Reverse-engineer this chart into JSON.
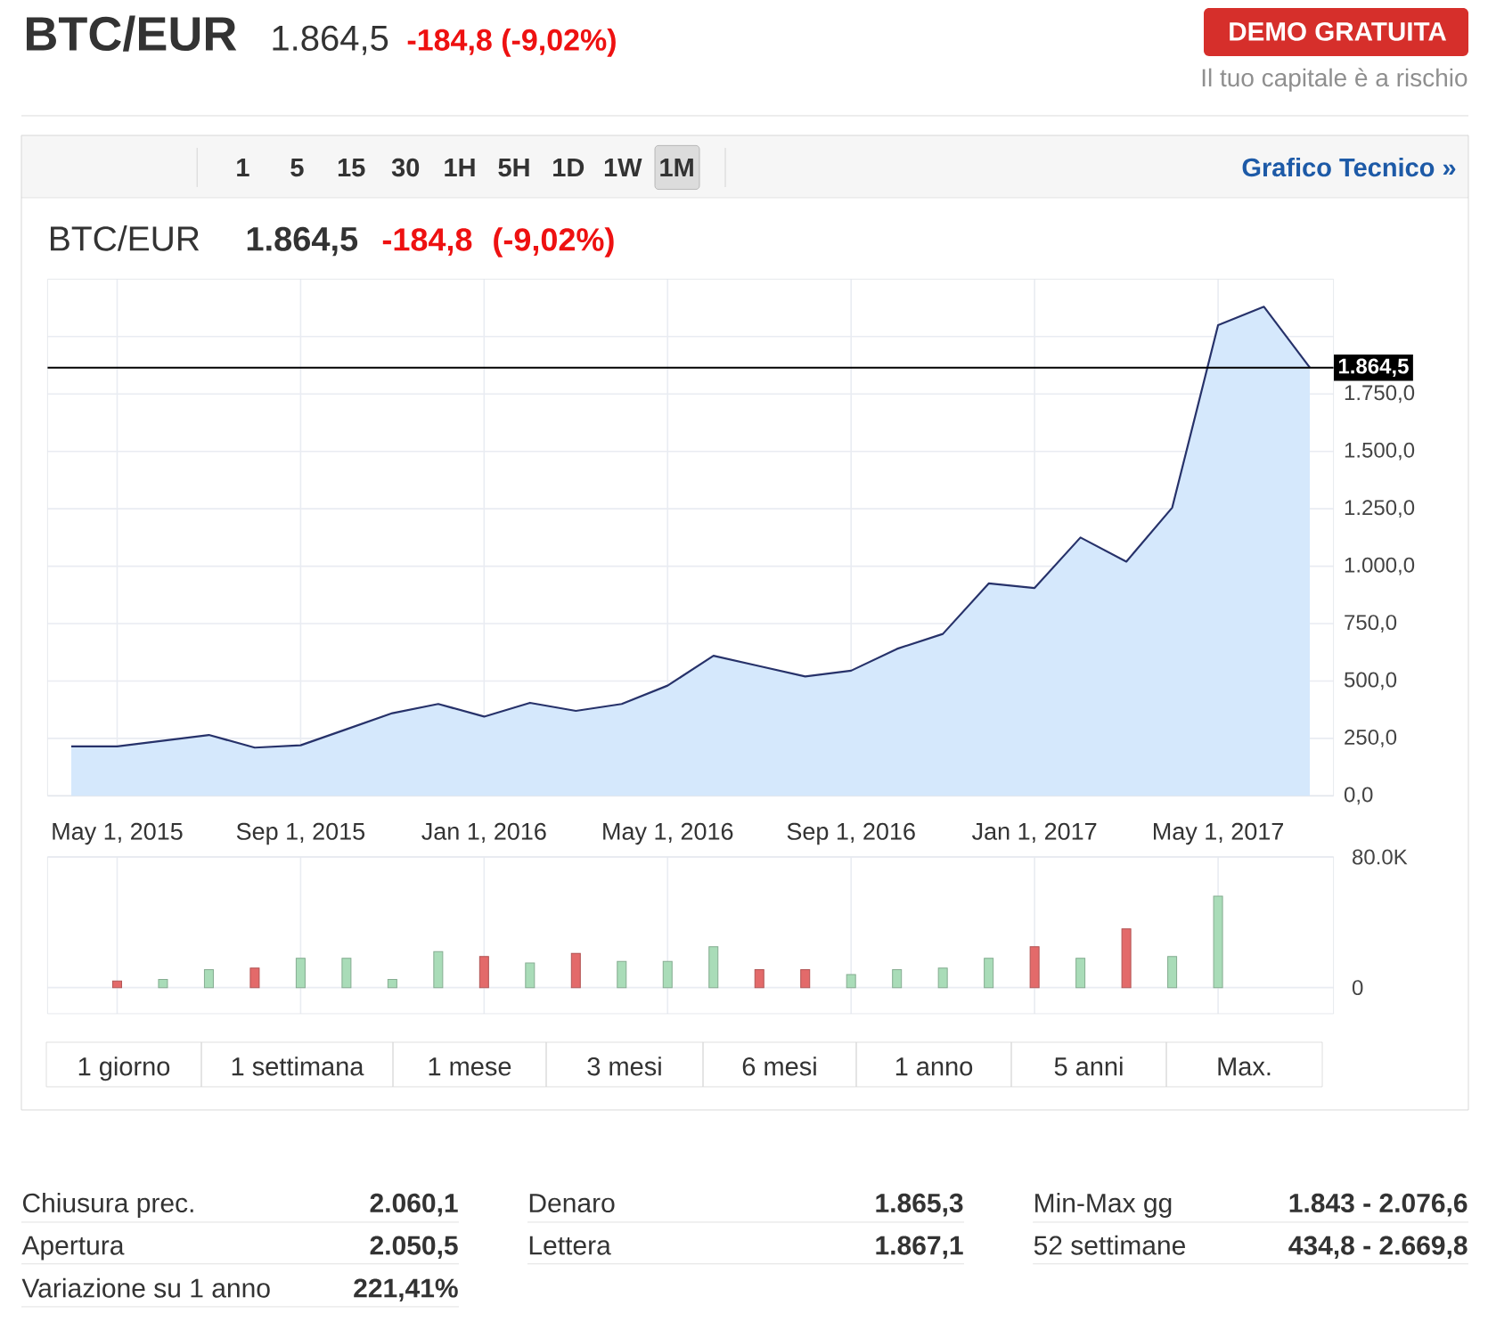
{
  "chart_data": [
    {
      "type": "other",
      "title": "BTC/EUR",
      "annotations": [
        "1.864,5",
        "-184,8 (-9,02%)",
        "DEMO GRATUITA",
        "Il tuo capitale è a rischio",
        "1",
        "5",
        "15",
        "30",
        "1H",
        "5H",
        "1D",
        "1W",
        "1M",
        "Grafico Tecnico »"
      ]
    },
    {
      "type": "area",
      "title": "BTC/EUR",
      "annotations": [
        "1.864,5",
        "-184,8",
        "(-9,02%)"
      ],
      "x": [
        "2015-04",
        "2015-05",
        "2015-06",
        "2015-07",
        "2015-08",
        "2015-09",
        "2015-10",
        "2015-11",
        "2015-12",
        "2016-01",
        "2016-02",
        "2016-03",
        "2016-04",
        "2016-05",
        "2016-06",
        "2016-07",
        "2016-08",
        "2016-09",
        "2016-10",
        "2016-11",
        "2016-12",
        "2017-01",
        "2017-02",
        "2017-03",
        "2017-04",
        "2017-05",
        "2017-06",
        "2017-07"
      ],
      "series": [
        {
          "color": "#d5e8fc",
          "values": [
            215,
            215,
            240,
            265,
            210,
            220,
            290,
            360,
            400,
            345,
            405,
            370,
            400,
            480,
            610,
            565,
            520,
            545,
            640,
            705,
            925,
            905,
            1125,
            1020,
            1255,
            2050,
            2130,
            1865
          ]
        }
      ],
      "xlim": [
        "2015-03-16",
        "2017-07-17"
      ],
      "xticks": [
        {
          "value": "2015-05-01",
          "label": "May 1, 2015"
        },
        {
          "value": "2015-09-01",
          "label": "Sep 1, 2015"
        },
        {
          "value": "2016-01-01",
          "label": "Jan 1, 2016"
        },
        {
          "value": "2016-05-01",
          "label": "May 1, 2016"
        },
        {
          "value": "2016-09-01",
          "label": "Sep 1, 2016"
        },
        {
          "value": "2017-01-01",
          "label": "Jan 1, 2017"
        },
        {
          "value": "2017-05-01",
          "label": "May 1, 2017"
        }
      ],
      "ylim": [
        0,
        2250
      ],
      "yticks": [
        {
          "value": 0,
          "label": "0,0"
        },
        {
          "value": 250,
          "label": "250,0"
        },
        {
          "value": 500,
          "label": "500,0"
        },
        {
          "value": 750,
          "label": "750,0"
        },
        {
          "value": 1000,
          "label": "1.000,0"
        },
        {
          "value": 1250,
          "label": "1.250,0"
        },
        {
          "value": 1500,
          "label": "1.500,0"
        },
        {
          "value": 1750,
          "label": "1.750,0"
        },
        {
          "value": 2000,
          "label": null
        }
      ],
      "grid": true,
      "ref_lines": [
        {
          "axis": "y",
          "value": 1864.5,
          "label": "1.864,5",
          "color": "#000000"
        }
      ]
    },
    {
      "type": "bar",
      "x": [
        "2015-05",
        "2015-06",
        "2015-07",
        "2015-08",
        "2015-09",
        "2015-10",
        "2015-11",
        "2015-12",
        "2016-01",
        "2016-02",
        "2016-03",
        "2016-04",
        "2016-05",
        "2016-06",
        "2016-07",
        "2016-08",
        "2016-09",
        "2016-10",
        "2016-11",
        "2016-12",
        "2017-01",
        "2017-02",
        "2017-03",
        "2017-04",
        "2017-05"
      ],
      "values": [
        4000,
        5000,
        11000,
        12000,
        18000,
        18000,
        5000,
        22000,
        19000,
        15000,
        21000,
        16000,
        16000,
        25000,
        11000,
        11000,
        8000,
        11000,
        12000,
        18000,
        25000,
        18000,
        36000,
        19000,
        56000
      ],
      "colors": [
        "#e36a6a",
        "#a9dcb8",
        "#a9dcb8",
        "#e36a6a",
        "#a9dcb8",
        "#a9dcb8",
        "#a9dcb8",
        "#a9dcb8",
        "#e36a6a",
        "#a9dcb8",
        "#e36a6a",
        "#a9dcb8",
        "#a9dcb8",
        "#a9dcb8",
        "#e36a6a",
        "#e36a6a",
        "#a9dcb8",
        "#a9dcb8",
        "#a9dcb8",
        "#a9dcb8",
        "#e36a6a",
        "#a9dcb8",
        "#e36a6a",
        "#a9dcb8",
        "#a9dcb8"
      ],
      "xlim": [
        "2015-03-16",
        "2017-07-17"
      ],
      "xticks": [
        {
          "value": "2015-05-01",
          "label": null
        },
        {
          "value": "2015-09-01",
          "label": null
        },
        {
          "value": "2016-01-01",
          "label": null
        },
        {
          "value": "2016-05-01",
          "label": null
        },
        {
          "value": "2016-09-01",
          "label": null
        },
        {
          "value": "2017-01-01",
          "label": null
        },
        {
          "value": "2017-05-01",
          "label": null
        }
      ],
      "ylim": [
        -16000,
        80000
      ],
      "yticks": [
        0,
        {
          "value": 80000,
          "label": "80.0K"
        }
      ],
      "grid": true,
      "tick_labels": "y"
    },
    {
      "type": "other",
      "annotations": [
        "1 giorno",
        "1 settimana",
        "1 mese",
        "3 mesi",
        "6 mesi",
        "1 anno",
        "5 anni",
        "Max."
      ]
    },
    {
      "type": "other",
      "annotations": [
        "Chiusura prec.",
        "2.060,1",
        "Denaro",
        "1.865,3",
        "Min-Max gg",
        "1.843 - 2.076,6",
        "Apertura",
        "2.050,5",
        "Lettera",
        "1.867,1",
        "52 settimane",
        "434,8 - 2.669,8",
        "Variazione su 1 anno",
        "221,41%"
      ]
    }
  ]
}
